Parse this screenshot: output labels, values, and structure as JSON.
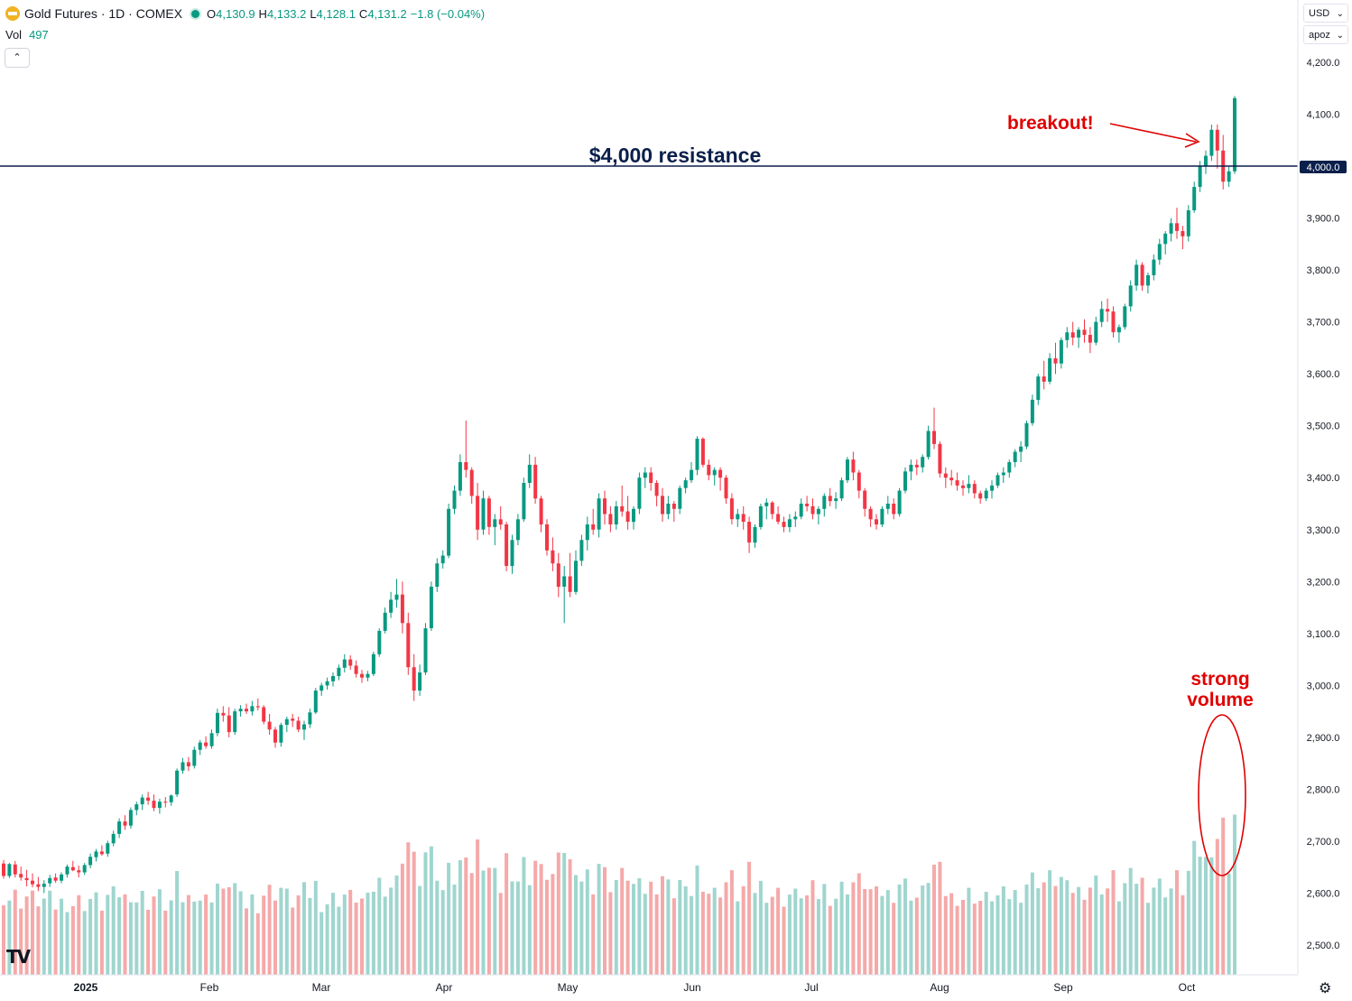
{
  "header": {
    "title": "Gold Futures · 1D · COMEX",
    "ohlc": [
      {
        "key": "O",
        "value": "4,130.9"
      },
      {
        "key": "H",
        "value": "4,133.2"
      },
      {
        "key": "L",
        "value": "4,128.1"
      },
      {
        "key": "C",
        "value": "4,131.2"
      }
    ],
    "change": "−1.8 (−0.04%)",
    "volume_label": "Vol",
    "volume_value": "497",
    "collapse_symbol": "⌃"
  },
  "scale_controls": {
    "currency": "USD",
    "mode": "apoz"
  },
  "annotations": {
    "resistance_label": "$4,000 resistance",
    "breakout_label": "breakout!",
    "volume_label_line1": "strong",
    "volume_label_line2": "volume"
  },
  "colors": {
    "up": "#089981",
    "down": "#f23645",
    "vol_up": "#9fd6cf",
    "vol_down": "#f5a9a9",
    "resistance_line": "#0b1f4b",
    "annotation_red": "#e00000"
  },
  "chart_data": {
    "type": "candlestick",
    "title": "Gold Futures · 1D · COMEX",
    "price_axis": {
      "ticks": [
        4200,
        4100,
        4000,
        3900,
        3800,
        3700,
        3600,
        3500,
        3400,
        3300,
        3200,
        3100,
        3000,
        2900,
        2800,
        2700,
        2600,
        2500
      ],
      "tick_labels": [
        "4,200.0",
        "4,100.0",
        "4,000.0",
        "3,900.0",
        "3,800.0",
        "3,700.0",
        "3,600.0",
        "3,500.0",
        "3,400.0",
        "3,300.0",
        "3,200.0",
        "3,100.0",
        "3,000.0",
        "2,900.0",
        "2,800.0",
        "2,700.0",
        "2,600.0",
        "2,500.0"
      ],
      "range": [
        2440,
        4305
      ]
    },
    "time_axis": {
      "labels": [
        "2025",
        "Feb",
        "Mar",
        "Apr",
        "May",
        "Jun",
        "Jul",
        "Aug",
        "Sep",
        "Oct"
      ]
    },
    "resistance_level": 4000,
    "period": "2024-12-16 to 2025-10-15 (daily)",
    "candles_ohlc": [
      [
        2657,
        2664,
        2628,
        2633
      ],
      [
        2633,
        2658,
        2629,
        2656
      ],
      [
        2655,
        2662,
        2630,
        2636
      ],
      [
        2637,
        2651,
        2624,
        2630
      ],
      [
        2629,
        2645,
        2613,
        2625
      ],
      [
        2624,
        2638,
        2611,
        2617
      ],
      [
        2617,
        2631,
        2604,
        2612
      ],
      [
        2612,
        2625,
        2600,
        2618
      ],
      [
        2619,
        2635,
        2612,
        2629
      ],
      [
        2630,
        2638,
        2620,
        2624
      ],
      [
        2624,
        2640,
        2619,
        2636
      ],
      [
        2636,
        2655,
        2630,
        2651
      ],
      [
        2650,
        2662,
        2642,
        2644
      ],
      [
        2644,
        2653,
        2630,
        2640
      ],
      [
        2640,
        2658,
        2635,
        2654
      ],
      [
        2654,
        2676,
        2648,
        2670
      ],
      [
        2669,
        2685,
        2661,
        2680
      ],
      [
        2680,
        2692,
        2672,
        2675
      ],
      [
        2676,
        2701,
        2670,
        2696
      ],
      [
        2696,
        2720,
        2690,
        2714
      ],
      [
        2714,
        2744,
        2706,
        2738
      ],
      [
        2738,
        2750,
        2722,
        2730
      ],
      [
        2730,
        2765,
        2724,
        2760
      ],
      [
        2760,
        2776,
        2750,
        2771
      ],
      [
        2771,
        2790,
        2760,
        2784
      ],
      [
        2784,
        2795,
        2770,
        2778
      ],
      [
        2778,
        2790,
        2758,
        2764
      ],
      [
        2764,
        2782,
        2753,
        2776
      ],
      [
        2776,
        2785,
        2765,
        2775
      ],
      [
        2775,
        2790,
        2768,
        2788
      ],
      [
        2790,
        2840,
        2785,
        2836
      ],
      [
        2836,
        2860,
        2830,
        2852
      ],
      [
        2852,
        2862,
        2835,
        2844
      ],
      [
        2845,
        2882,
        2840,
        2876
      ],
      [
        2876,
        2895,
        2866,
        2890
      ],
      [
        2890,
        2902,
        2878,
        2883
      ],
      [
        2883,
        2915,
        2878,
        2908
      ],
      [
        2908,
        2955,
        2902,
        2947
      ],
      [
        2947,
        2960,
        2930,
        2942
      ],
      [
        2942,
        2958,
        2900,
        2910
      ],
      [
        2910,
        2955,
        2905,
        2950
      ],
      [
        2950,
        2962,
        2940,
        2955
      ],
      [
        2955,
        2965,
        2945,
        2950
      ],
      [
        2950,
        2970,
        2942,
        2960
      ],
      [
        2960,
        2975,
        2952,
        2958
      ],
      [
        2958,
        2962,
        2925,
        2930
      ],
      [
        2930,
        2945,
        2905,
        2915
      ],
      [
        2915,
        2920,
        2880,
        2890
      ],
      [
        2890,
        2928,
        2882,
        2924
      ],
      [
        2924,
        2940,
        2910,
        2935
      ],
      [
        2936,
        2945,
        2920,
        2932
      ],
      [
        2932,
        2940,
        2910,
        2915
      ],
      [
        2915,
        2932,
        2895,
        2925
      ],
      [
        2925,
        2955,
        2918,
        2948
      ],
      [
        2948,
        2995,
        2945,
        2990
      ],
      [
        2990,
        3005,
        2980,
        3000
      ],
      [
        3000,
        3015,
        2992,
        3008
      ],
      [
        3008,
        3025,
        2998,
        3018
      ],
      [
        3018,
        3040,
        3010,
        3034
      ],
      [
        3034,
        3060,
        3025,
        3050
      ],
      [
        3050,
        3058,
        3030,
        3038
      ],
      [
        3038,
        3048,
        3015,
        3022
      ],
      [
        3022,
        3030,
        3005,
        3015
      ],
      [
        3015,
        3028,
        3008,
        3022
      ],
      [
        3022,
        3065,
        3018,
        3060
      ],
      [
        3060,
        3110,
        3055,
        3105
      ],
      [
        3105,
        3150,
        3100,
        3140
      ],
      [
        3140,
        3180,
        3130,
        3165
      ],
      [
        3165,
        3205,
        3150,
        3175
      ],
      [
        3175,
        3200,
        3100,
        3120
      ],
      [
        3120,
        3140,
        3020,
        3035
      ],
      [
        3035,
        3060,
        2970,
        2990
      ],
      [
        2990,
        3040,
        2980,
        3025
      ],
      [
        3025,
        3120,
        3020,
        3110
      ],
      [
        3110,
        3200,
        3105,
        3190
      ],
      [
        3190,
        3245,
        3180,
        3235
      ],
      [
        3235,
        3260,
        3225,
        3250
      ],
      [
        3250,
        3350,
        3245,
        3340
      ],
      [
        3340,
        3385,
        3330,
        3375
      ],
      [
        3375,
        3445,
        3365,
        3430
      ],
      [
        3430,
        3510,
        3400,
        3415
      ],
      [
        3415,
        3420,
        3350,
        3365
      ],
      [
        3365,
        3390,
        3280,
        3300
      ],
      [
        3300,
        3375,
        3290,
        3360
      ],
      [
        3360,
        3365,
        3290,
        3305
      ],
      [
        3305,
        3330,
        3270,
        3320
      ],
      [
        3320,
        3345,
        3300,
        3310
      ],
      [
        3310,
        3315,
        3220,
        3230
      ],
      [
        3230,
        3290,
        3215,
        3280
      ],
      [
        3280,
        3330,
        3270,
        3320
      ],
      [
        3320,
        3400,
        3315,
        3390
      ],
      [
        3390,
        3445,
        3380,
        3425
      ],
      [
        3425,
        3440,
        3350,
        3360
      ],
      [
        3360,
        3365,
        3295,
        3310
      ],
      [
        3310,
        3320,
        3250,
        3260
      ],
      [
        3260,
        3285,
        3220,
        3235
      ],
      [
        3235,
        3255,
        3170,
        3190
      ],
      [
        3190,
        3230,
        3120,
        3210
      ],
      [
        3210,
        3255,
        3170,
        3180
      ],
      [
        3180,
        3260,
        3175,
        3240
      ],
      [
        3240,
        3290,
        3230,
        3280
      ],
      [
        3280,
        3325,
        3260,
        3310
      ],
      [
        3310,
        3340,
        3290,
        3300
      ],
      [
        3300,
        3370,
        3285,
        3360
      ],
      [
        3360,
        3375,
        3310,
        3330
      ],
      [
        3330,
        3345,
        3295,
        3310
      ],
      [
        3310,
        3355,
        3300,
        3345
      ],
      [
        3345,
        3385,
        3325,
        3335
      ],
      [
        3335,
        3365,
        3300,
        3315
      ],
      [
        3315,
        3345,
        3300,
        3340
      ],
      [
        3340,
        3410,
        3330,
        3400
      ],
      [
        3400,
        3420,
        3380,
        3410
      ],
      [
        3410,
        3420,
        3375,
        3390
      ],
      [
        3390,
        3395,
        3345,
        3365
      ],
      [
        3365,
        3380,
        3315,
        3330
      ],
      [
        3330,
        3365,
        3320,
        3350
      ],
      [
        3350,
        3355,
        3315,
        3340
      ],
      [
        3340,
        3385,
        3330,
        3380
      ],
      [
        3380,
        3400,
        3370,
        3395
      ],
      [
        3395,
        3430,
        3390,
        3415
      ],
      [
        3415,
        3480,
        3405,
        3475
      ],
      [
        3475,
        3478,
        3420,
        3425
      ],
      [
        3425,
        3435,
        3395,
        3405
      ],
      [
        3405,
        3420,
        3385,
        3415
      ],
      [
        3415,
        3420,
        3375,
        3400
      ],
      [
        3400,
        3405,
        3350,
        3360
      ],
      [
        3360,
        3370,
        3310,
        3320
      ],
      [
        3320,
        3340,
        3305,
        3330
      ],
      [
        3330,
        3345,
        3300,
        3315
      ],
      [
        3315,
        3325,
        3255,
        3275
      ],
      [
        3275,
        3310,
        3265,
        3305
      ],
      [
        3305,
        3350,
        3300,
        3345
      ],
      [
        3345,
        3360,
        3320,
        3352
      ],
      [
        3352,
        3355,
        3320,
        3330
      ],
      [
        3330,
        3345,
        3310,
        3315
      ],
      [
        3315,
        3325,
        3295,
        3305
      ],
      [
        3305,
        3330,
        3295,
        3320
      ],
      [
        3320,
        3335,
        3305,
        3325
      ],
      [
        3325,
        3360,
        3320,
        3350
      ],
      [
        3350,
        3365,
        3335,
        3345
      ],
      [
        3345,
        3360,
        3320,
        3330
      ],
      [
        3330,
        3345,
        3310,
        3340
      ],
      [
        3340,
        3370,
        3325,
        3365
      ],
      [
        3365,
        3380,
        3345,
        3355
      ],
      [
        3355,
        3372,
        3340,
        3360
      ],
      [
        3360,
        3400,
        3355,
        3395
      ],
      [
        3395,
        3440,
        3390,
        3435
      ],
      [
        3435,
        3450,
        3395,
        3410
      ],
      [
        3410,
        3415,
        3360,
        3375
      ],
      [
        3375,
        3380,
        3325,
        3340
      ],
      [
        3340,
        3345,
        3305,
        3320
      ],
      [
        3320,
        3330,
        3300,
        3310
      ],
      [
        3310,
        3345,
        3305,
        3340
      ],
      [
        3340,
        3365,
        3330,
        3350
      ],
      [
        3350,
        3360,
        3320,
        3330
      ],
      [
        3330,
        3380,
        3325,
        3375
      ],
      [
        3375,
        3420,
        3370,
        3412
      ],
      [
        3412,
        3435,
        3395,
        3425
      ],
      [
        3425,
        3435,
        3405,
        3420
      ],
      [
        3420,
        3445,
        3410,
        3440
      ],
      [
        3440,
        3500,
        3435,
        3490
      ],
      [
        3490,
        3535,
        3455,
        3465
      ],
      [
        3465,
        3470,
        3400,
        3408
      ],
      [
        3408,
        3420,
        3380,
        3400
      ],
      [
        3400,
        3415,
        3385,
        3395
      ],
      [
        3395,
        3410,
        3375,
        3385
      ],
      [
        3385,
        3395,
        3365,
        3380
      ],
      [
        3380,
        3405,
        3370,
        3388
      ],
      [
        3388,
        3395,
        3360,
        3370
      ],
      [
        3370,
        3375,
        3350,
        3360
      ],
      [
        3360,
        3380,
        3355,
        3375
      ],
      [
        3375,
        3395,
        3360,
        3385
      ],
      [
        3385,
        3410,
        3380,
        3405
      ],
      [
        3405,
        3420,
        3390,
        3410
      ],
      [
        3410,
        3435,
        3400,
        3430
      ],
      [
        3430,
        3455,
        3420,
        3450
      ],
      [
        3450,
        3470,
        3430,
        3460
      ],
      [
        3460,
        3510,
        3455,
        3505
      ],
      [
        3505,
        3560,
        3500,
        3550
      ],
      [
        3550,
        3600,
        3540,
        3595
      ],
      [
        3595,
        3625,
        3570,
        3585
      ],
      [
        3585,
        3640,
        3580,
        3630
      ],
      [
        3630,
        3660,
        3600,
        3620
      ],
      [
        3620,
        3670,
        3610,
        3665
      ],
      [
        3665,
        3690,
        3650,
        3680
      ],
      [
        3680,
        3700,
        3655,
        3670
      ],
      [
        3670,
        3690,
        3650,
        3685
      ],
      [
        3685,
        3705,
        3660,
        3675
      ],
      [
        3675,
        3690,
        3640,
        3660
      ],
      [
        3660,
        3710,
        3655,
        3700
      ],
      [
        3700,
        3740,
        3690,
        3725
      ],
      [
        3725,
        3745,
        3700,
        3720
      ],
      [
        3720,
        3730,
        3670,
        3680
      ],
      [
        3680,
        3695,
        3660,
        3690
      ],
      [
        3690,
        3735,
        3685,
        3730
      ],
      [
        3730,
        3780,
        3720,
        3770
      ],
      [
        3770,
        3820,
        3760,
        3810
      ],
      [
        3810,
        3815,
        3760,
        3770
      ],
      [
        3770,
        3795,
        3755,
        3790
      ],
      [
        3790,
        3830,
        3780,
        3820
      ],
      [
        3820,
        3860,
        3810,
        3850
      ],
      [
        3850,
        3875,
        3830,
        3870
      ],
      [
        3870,
        3900,
        3855,
        3890
      ],
      [
        3890,
        3920,
        3860,
        3875
      ],
      [
        3875,
        3885,
        3840,
        3865
      ],
      [
        3865,
        3925,
        3855,
        3915
      ],
      [
        3915,
        3970,
        3910,
        3960
      ],
      [
        3960,
        4010,
        3950,
        4000
      ],
      [
        4000,
        4030,
        3985,
        4020
      ],
      [
        4020,
        4080,
        4010,
        4070
      ],
      [
        4070,
        4080,
        3995,
        4030
      ],
      [
        4030,
        4060,
        3955,
        3970
      ],
      [
        3970,
        4000,
        3960,
        3990
      ],
      [
        3990,
        4135,
        3985,
        4131
      ]
    ],
    "volume_note": "Volume bars; green on up days, red on down days"
  }
}
